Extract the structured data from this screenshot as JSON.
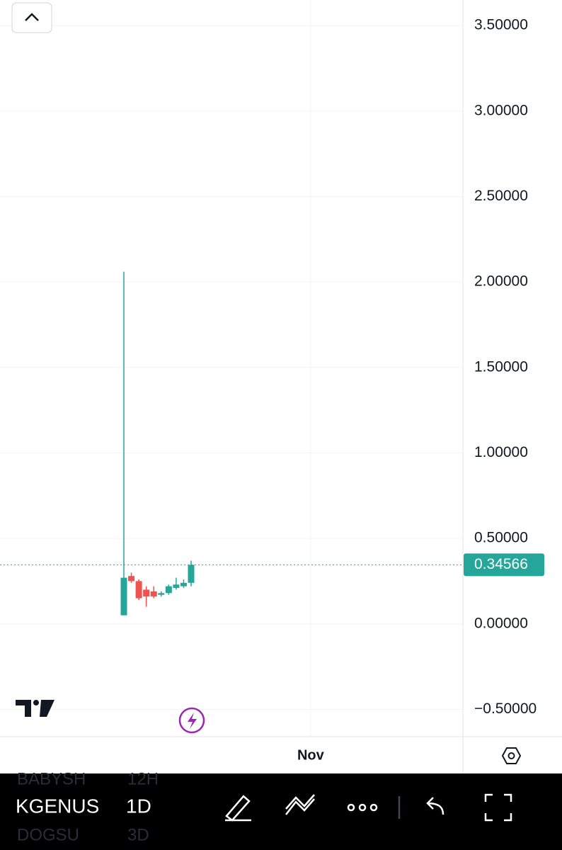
{
  "chart_data": {
    "type": "candlestick",
    "x": [
      0,
      1,
      2,
      3,
      4,
      5,
      6,
      7,
      8,
      9
    ],
    "open": [
      0.05,
      0.28,
      0.25,
      0.2,
      0.19,
      0.17,
      0.18,
      0.21,
      0.22,
      0.24
    ],
    "high": [
      2.06,
      0.3,
      0.26,
      0.22,
      0.22,
      0.19,
      0.23,
      0.27,
      0.26,
      0.37
    ],
    "low": [
      0.05,
      0.24,
      0.14,
      0.1,
      0.15,
      0.16,
      0.17,
      0.2,
      0.21,
      0.22
    ],
    "close": [
      0.27,
      0.25,
      0.15,
      0.16,
      0.16,
      0.18,
      0.22,
      0.23,
      0.24,
      0.34566
    ],
    "up_color": "#26a69a",
    "down_color": "#ef5350",
    "last_price": 0.34566,
    "xlim": [
      -16.58,
      45.38
    ],
    "xticks": [
      {
        "value": 25,
        "label": "Nov"
      }
    ],
    "ylim": [
      -0.66,
      3.65
    ],
    "yticks": [
      {
        "value": -0.5,
        "label": "−0.50000"
      },
      {
        "value": 0,
        "label": "0.00000"
      },
      {
        "value": 0.5,
        "label": "0.50000"
      },
      {
        "value": 1,
        "label": "1.00000"
      },
      {
        "value": 1.5,
        "label": "1.50000"
      },
      {
        "value": 2,
        "label": "2.00000"
      },
      {
        "value": 2.5,
        "label": "2.50000"
      },
      {
        "value": 3,
        "label": "3.00000"
      },
      {
        "value": 3.5,
        "label": "3.50000"
      }
    ],
    "grid": true
  },
  "toolbar": {
    "symbols": [
      "BABYSH",
      "KGENUS",
      "DOGSU"
    ],
    "intervals": [
      "12H",
      "1D",
      "3D"
    ]
  }
}
